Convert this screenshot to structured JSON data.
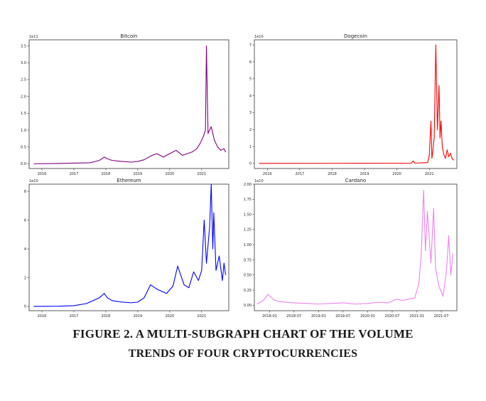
{
  "caption": {
    "line1": "FIGURE 2. A MULTI-SUBGRAPH CHART OF THE VOLUME",
    "line2": "TRENDS OF FOUR CRYPTOCURRENCIES"
  },
  "chart_data": [
    {
      "type": "line",
      "title": "Bitcoin",
      "offset_label": "1e11",
      "color": "#800080",
      "x_unit": "year",
      "xlim": [
        2015.6,
        2021.85
      ],
      "ylim": [
        -0.14,
        3.68
      ],
      "x_ticks": [
        2016,
        2017,
        2018,
        2019,
        2020,
        2021
      ],
      "x_tick_labels": [
        "2016",
        "2017",
        "2018",
        "2019",
        "2020",
        "2021"
      ],
      "y_ticks": [
        0.0,
        0.5,
        1.0,
        1.5,
        2.0,
        2.5,
        3.0,
        3.5
      ],
      "y_tick_labels": [
        "0.0",
        "0.5",
        "1.0",
        "1.5",
        "2.0",
        "2.5",
        "3.0",
        "3.5"
      ],
      "series": [
        {
          "x": [
            2015.75,
            2016.5,
            2017.0,
            2017.5,
            2017.8,
            2017.95,
            2018.05,
            2018.2,
            2018.5,
            2018.8,
            2019.0,
            2019.2,
            2019.45,
            2019.6,
            2019.8,
            2020.0,
            2020.2,
            2020.4,
            2020.55,
            2020.7,
            2020.85,
            2020.95,
            2021.05,
            2021.12,
            2021.15,
            2021.2,
            2021.3,
            2021.4,
            2021.5,
            2021.6,
            2021.7,
            2021.75
          ],
          "y": [
            0.0,
            0.01,
            0.02,
            0.03,
            0.1,
            0.2,
            0.15,
            0.1,
            0.07,
            0.05,
            0.07,
            0.12,
            0.25,
            0.3,
            0.2,
            0.3,
            0.4,
            0.25,
            0.3,
            0.35,
            0.45,
            0.6,
            0.8,
            1.0,
            3.5,
            0.9,
            1.1,
            0.7,
            0.5,
            0.4,
            0.45,
            0.35
          ]
        }
      ]
    },
    {
      "type": "line",
      "title": "Dogecoin",
      "offset_label": "1e10",
      "color": "#ff0000",
      "x_unit": "year",
      "xlim": [
        2015.6,
        2021.85
      ],
      "ylim": [
        -0.3,
        7.3
      ],
      "x_ticks": [
        2016,
        2017,
        2018,
        2019,
        2020,
        2021
      ],
      "x_tick_labels": [
        "2016",
        "2017",
        "2018",
        "2019",
        "2020",
        "2021"
      ],
      "y_ticks": [
        0,
        1,
        2,
        3,
        4,
        5,
        6,
        7
      ],
      "y_tick_labels": [
        "0",
        "1",
        "2",
        "3",
        "4",
        "5",
        "6",
        "7"
      ],
      "series": [
        {
          "x": [
            2015.75,
            2018.0,
            2020.0,
            2020.45,
            2020.5,
            2020.55,
            2020.95,
            2021.0,
            2021.05,
            2021.08,
            2021.1,
            2021.15,
            2021.2,
            2021.25,
            2021.3,
            2021.33,
            2021.36,
            2021.4,
            2021.45,
            2021.5,
            2021.55,
            2021.6,
            2021.65,
            2021.7,
            2021.75
          ],
          "y": [
            0.0,
            0.005,
            0.01,
            0.02,
            0.15,
            0.02,
            0.05,
            0.5,
            2.5,
            0.3,
            0.6,
            1.5,
            7.0,
            2.0,
            4.6,
            1.5,
            2.5,
            1.0,
            0.5,
            0.3,
            0.8,
            0.4,
            0.6,
            0.3,
            0.2
          ]
        }
      ]
    },
    {
      "type": "line",
      "title": "Ethereum",
      "offset_label": "1e10",
      "color": "#0000ff",
      "x_unit": "year",
      "xlim": [
        2015.6,
        2021.85
      ],
      "ylim": [
        -0.3,
        8.5
      ],
      "x_ticks": [
        2016,
        2017,
        2018,
        2019,
        2020,
        2021
      ],
      "x_tick_labels": [
        "2016",
        "2017",
        "2018",
        "2019",
        "2020",
        "2021"
      ],
      "y_ticks": [
        0,
        2,
        4,
        6,
        8
      ],
      "y_tick_labels": [
        "0",
        "2",
        "4",
        "6",
        "8"
      ],
      "series": [
        {
          "x": [
            2015.75,
            2016.5,
            2017.0,
            2017.4,
            2017.8,
            2017.95,
            2018.05,
            2018.2,
            2018.5,
            2018.8,
            2019.0,
            2019.2,
            2019.4,
            2019.6,
            2019.9,
            2020.1,
            2020.25,
            2020.45,
            2020.6,
            2020.75,
            2020.9,
            2021.0,
            2021.08,
            2021.15,
            2021.25,
            2021.3,
            2021.35,
            2021.38,
            2021.45,
            2021.55,
            2021.65,
            2021.7,
            2021.75
          ],
          "y": [
            0.0,
            0.01,
            0.05,
            0.2,
            0.6,
            0.9,
            0.6,
            0.4,
            0.3,
            0.25,
            0.3,
            0.6,
            1.5,
            1.2,
            0.9,
            1.4,
            2.8,
            1.5,
            1.3,
            2.4,
            1.8,
            2.5,
            6.0,
            3.0,
            5.5,
            8.5,
            4.0,
            6.5,
            2.5,
            3.5,
            1.8,
            3.0,
            2.2
          ]
        }
      ]
    },
    {
      "type": "line",
      "title": "Cardano",
      "offset_label": "1e10",
      "color": "#ee82ee",
      "x_unit": "date",
      "xlim": [
        "2017-09-10",
        "2021-10-25"
      ],
      "ylim": [
        -0.09,
        2.0
      ],
      "x_ticks": [
        "2018-01-01",
        "2018-07-01",
        "2019-01-01",
        "2019-07-01",
        "2020-01-01",
        "2020-07-01",
        "2021-01-01",
        "2021-07-01"
      ],
      "x_tick_labels": [
        "2018-01",
        "2018-07",
        "2019-01",
        "2019-07",
        "2020-01",
        "2020-07",
        "2021-01",
        "2021-07"
      ],
      "y_ticks": [
        0.0,
        0.25,
        0.5,
        0.75,
        1.0,
        1.25,
        1.5,
        1.75,
        2.0
      ],
      "y_tick_labels": [
        "0.00",
        "0.25",
        "0.50",
        "0.75",
        "1.00",
        "1.25",
        "1.50",
        "1.75",
        "2.00"
      ],
      "series": [
        {
          "x": [
            "2017-10-01",
            "2017-11-15",
            "2017-12-20",
            "2018-01-05",
            "2018-02-01",
            "2018-03-15",
            "2018-05-01",
            "2018-07-01",
            "2018-10-01",
            "2019-01-01",
            "2019-04-01",
            "2019-07-01",
            "2019-10-01",
            "2020-01-01",
            "2020-03-15",
            "2020-06-01",
            "2020-08-01",
            "2020-09-15",
            "2020-11-01",
            "2020-12-15",
            "2021-01-15",
            "2021-02-01",
            "2021-02-20",
            "2021-03-05",
            "2021-03-20",
            "2021-04-15",
            "2021-05-05",
            "2021-05-20",
            "2021-06-15",
            "2021-07-15",
            "2021-08-10",
            "2021-08-25",
            "2021-09-10",
            "2021-09-25"
          ],
          "y": [
            0.02,
            0.08,
            0.18,
            0.15,
            0.09,
            0.06,
            0.05,
            0.04,
            0.03,
            0.02,
            0.03,
            0.04,
            0.02,
            0.03,
            0.05,
            0.04,
            0.1,
            0.08,
            0.1,
            0.12,
            0.35,
            0.8,
            1.9,
            0.9,
            1.55,
            0.7,
            1.6,
            0.6,
            0.3,
            0.15,
            0.6,
            1.15,
            0.5,
            0.85
          ]
        }
      ]
    }
  ]
}
